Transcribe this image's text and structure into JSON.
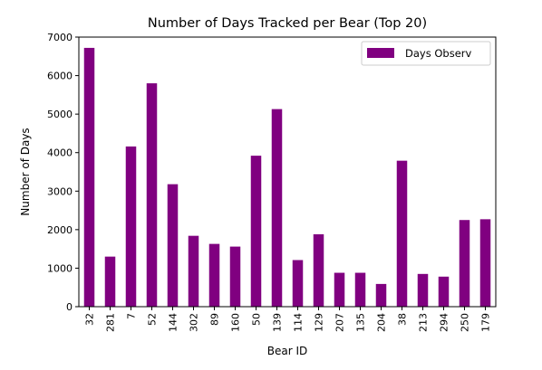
{
  "chart_data": {
    "type": "bar",
    "title": "Number of Days Tracked per Bear (Top 20)",
    "xlabel": "Bear ID",
    "ylabel": "Number of Days",
    "categories": [
      "32",
      "281",
      "7",
      "52",
      "144",
      "302",
      "89",
      "160",
      "50",
      "139",
      "114",
      "129",
      "207",
      "135",
      "204",
      "38",
      "213",
      "294",
      "250",
      "179"
    ],
    "series": [
      {
        "name": "Days Observ",
        "color": "#800080",
        "values": [
          6720,
          1300,
          4160,
          5800,
          3180,
          1840,
          1630,
          1560,
          3920,
          5130,
          1210,
          1880,
          880,
          880,
          590,
          3790,
          850,
          780,
          2250,
          2270
        ]
      }
    ],
    "ylim": [
      0,
      7000
    ],
    "yticks": [
      "0",
      "1000",
      "2000",
      "3000",
      "4000",
      "5000",
      "6000",
      "7000"
    ],
    "ytick_values": [
      0,
      1000,
      2000,
      3000,
      4000,
      5000,
      6000,
      7000
    ],
    "grid": false,
    "legend_position": "upper right"
  }
}
